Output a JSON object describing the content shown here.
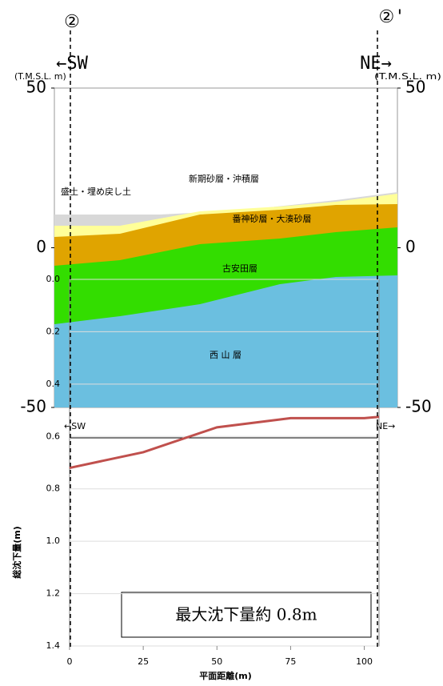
{
  "section": {
    "left_marker": "②",
    "right_marker": "②'",
    "left_dir": "←SW",
    "right_dir": "NE→",
    "left_unit": "(T.M.S.L. m)",
    "right_unit": "(T.M.S.L. m)",
    "ylim": [
      -50,
      50
    ],
    "yticks": [
      50,
      0,
      -50
    ],
    "layers": [
      "盛土・埋め戻し土",
      "新期砂層・沖積層",
      "番神砂層・大湊砂層",
      "古安田層",
      "西 山 層"
    ],
    "small_left_dir": "←SW",
    "small_right_dir": "NE→"
  },
  "chart_data": {
    "type": "line",
    "ylabel": "総沈下量(m)",
    "xlabel": "平面距離(m)",
    "annotation": "最大沈下量約 0.8m",
    "x": [
      0,
      25,
      50,
      75,
      100,
      105
    ],
    "series": [
      {
        "color": "#c0504d",
        "values": [
          0.72,
          0.66,
          0.565,
          0.53,
          0.53,
          0.525
        ]
      }
    ],
    "xlim": [
      0,
      105
    ],
    "xticks": [
      0,
      25,
      50,
      75,
      100
    ],
    "ylim": [
      0,
      1.4
    ],
    "inverted_y": true,
    "yticks": [
      {
        "value": 0,
        "label": "0.0"
      },
      0.2,
      0.4,
      0.6,
      0.8,
      {
        "value": 1,
        "label": "1.0"
      },
      1.2,
      1.4
    ],
    "grid": true
  }
}
